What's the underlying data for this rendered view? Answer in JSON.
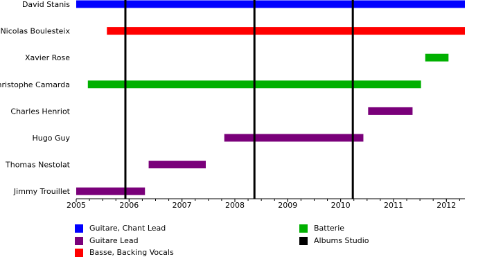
{
  "chart_data": {
    "type": "timeline",
    "x_axis": {
      "min": 2005.0,
      "max": 2012.35,
      "ticks": [
        2005,
        2006,
        2007,
        2008,
        2009,
        2010,
        2011,
        2012
      ]
    },
    "members": [
      {
        "name": "David Stanis",
        "bars": [
          {
            "start": 2005.0,
            "end": 2012.35,
            "role": "Guitare, Chant Lead"
          }
        ]
      },
      {
        "name": "Nicolas Boulesteix",
        "bars": [
          {
            "start": 2005.58,
            "end": 2012.35,
            "role": "Basse, Backing Vocals"
          }
        ]
      },
      {
        "name": "Xavier Rose",
        "bars": [
          {
            "start": 2011.6,
            "end": 2012.04,
            "role": "Batterie"
          }
        ]
      },
      {
        "name": "Jean-Christophe Camarda",
        "bars": [
          {
            "start": 2005.22,
            "end": 2011.52,
            "role": "Batterie"
          }
        ]
      },
      {
        "name": "Charles Henriot",
        "bars": [
          {
            "start": 2010.52,
            "end": 2011.36,
            "role": "Guitare Lead"
          }
        ]
      },
      {
        "name": "Hugo Guy",
        "bars": [
          {
            "start": 2007.8,
            "end": 2010.43,
            "role": "Guitare Lead"
          }
        ]
      },
      {
        "name": "Thomas Nestolat",
        "bars": [
          {
            "start": 2006.37,
            "end": 2007.45,
            "role": "Guitare Lead"
          }
        ]
      },
      {
        "name": "Jimmy Trouillet",
        "bars": [
          {
            "start": 2005.0,
            "end": 2006.3,
            "role": "Guitare Lead"
          }
        ]
      }
    ],
    "albums": [
      2005.93,
      2008.37,
      2010.23
    ],
    "legend": [
      {
        "label": "Guitare, Chant Lead",
        "color": "#0000ff"
      },
      {
        "label": "Guitare Lead",
        "color": "#7a007a"
      },
      {
        "label": "Basse, Backing Vocals",
        "color": "#ff0000"
      },
      {
        "label": "Batterie",
        "color": "#00b000"
      },
      {
        "label": "Albums Studio",
        "color": "#000000"
      }
    ]
  }
}
